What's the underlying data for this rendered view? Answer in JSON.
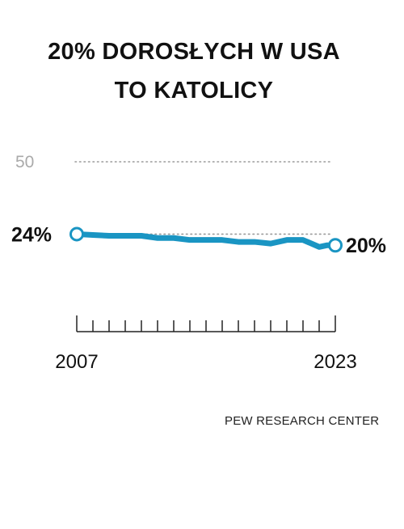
{
  "title_lines": [
    "20% DOROSŁYCH W USA",
    "TO KATOLICY"
  ],
  "source": "PEW RESEARCH CENTER",
  "colors": {
    "line": "#1a95c3",
    "grid": "#9a9a9a",
    "tick_label": "#aaaaaa",
    "text": "#111111"
  },
  "chart_data": {
    "type": "line",
    "title": "20% DOROSŁYCH W USA TO KATOLICY",
    "xlabel": "",
    "ylabel": "",
    "ylim": [
      0,
      50
    ],
    "xlim": [
      2007,
      2023
    ],
    "yticks": [
      {
        "value": 50,
        "label": "50"
      }
    ],
    "xtick_labels": [
      "2007",
      "2023"
    ],
    "grid": "dotted horizontal at 50 and at the 2007 value",
    "x": [
      2007,
      2008,
      2009,
      2010,
      2011,
      2012,
      2013,
      2014,
      2015,
      2016,
      2017,
      2018,
      2019,
      2020,
      2021,
      2022,
      2022.5,
      2023
    ],
    "values": [
      24,
      23.7,
      23.4,
      23.4,
      23.4,
      22.6,
      22.6,
      21.9,
      21.9,
      21.9,
      21.2,
      21.2,
      20.6,
      21.9,
      21.9,
      19.4,
      20.0,
      20.0
    ],
    "start_label": "24%",
    "end_label": "20%"
  }
}
